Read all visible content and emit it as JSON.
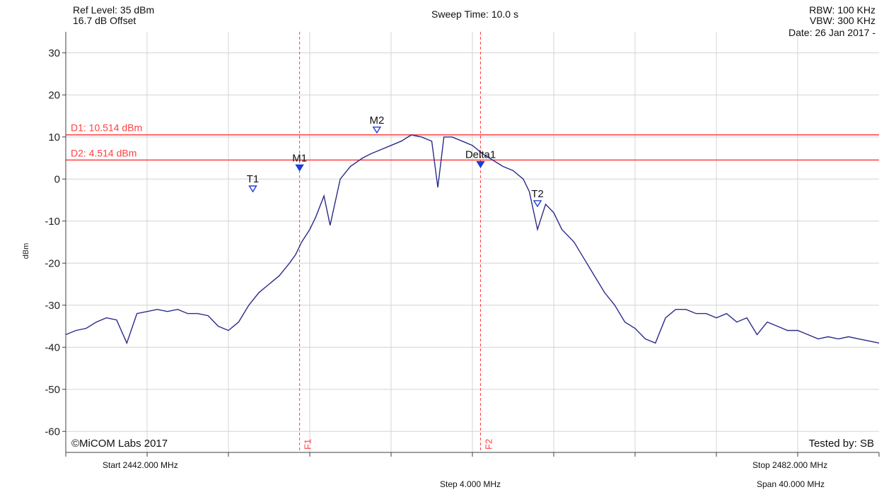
{
  "header": {
    "ref_level": "Ref Level: 35 dBm",
    "offset": "16.7 dB Offset",
    "sweep_time": "Sweep Time: 10.0 s",
    "rbw": "RBW: 100 KHz",
    "vbw": "VBW: 300 KHz",
    "date": "Date: 26 Jan 2017 -"
  },
  "footer": {
    "start": "Start 2442.000 MHz",
    "step": "Step 4.000 MHz",
    "stop": "Stop 2482.000 MHz",
    "span": "Span 40.000 MHz",
    "copyright": "©MiCOM Labs 2017",
    "tested_by": "Tested by: SB"
  },
  "colors": {
    "trace": "#2b2b8a",
    "marker": "#1a3fd6",
    "limit": "#ff4040",
    "grid": "#d4d4d4",
    "axis": "#404040"
  },
  "chart_data": {
    "type": "line",
    "ylabel": "dBm",
    "xlim": [
      2442.0,
      2482.0
    ],
    "ylim": [
      -65,
      35
    ],
    "x_grid_step_mhz": 4.0,
    "yticks": [
      30,
      20,
      10,
      0,
      -10,
      -20,
      -30,
      -40,
      -50,
      -60
    ],
    "series": [
      {
        "x": [
          2442.0,
          2442.5,
          2443.0,
          2443.5,
          2444.0,
          2444.5,
          2445.0,
          2445.5,
          2446.0,
          2446.5,
          2447.0,
          2447.5,
          2448.0,
          2448.5,
          2449.0,
          2449.5,
          2450.0,
          2450.5,
          2451.0,
          2451.5,
          2452.0,
          2452.5,
          2453.0,
          2453.3,
          2453.6,
          2454.0,
          2454.3,
          2454.7,
          2455.0,
          2455.5,
          2456.0,
          2456.3,
          2456.6,
          2457.0,
          2457.5,
          2458.0,
          2458.5,
          2459.0,
          2459.5,
          2460.0,
          2460.3,
          2460.6,
          2461.0,
          2461.5,
          2462.0,
          2462.5,
          2463.0,
          2463.5,
          2464.0,
          2464.5,
          2464.8,
          2465.2,
          2465.6,
          2466.0,
          2466.4,
          2467.0,
          2467.5,
          2468.0,
          2468.5,
          2469.0,
          2469.5,
          2470.0,
          2470.5,
          2471.0,
          2471.5,
          2472.0,
          2472.5,
          2473.0,
          2473.5,
          2474.0,
          2474.5,
          2475.0,
          2475.5,
          2476.0,
          2476.5,
          2477.0,
          2477.5,
          2478.0,
          2478.5,
          2479.0,
          2479.5,
          2480.0,
          2480.5,
          2481.0,
          2481.5,
          2482.0
        ],
        "values": [
          -37,
          -36,
          -35.5,
          -34,
          -33,
          -33.5,
          -39,
          -32,
          -31.5,
          -31,
          -31.5,
          -31,
          -32,
          -32,
          -32.5,
          -35,
          -36,
          -34,
          -30,
          -27,
          -25,
          -23,
          -20,
          -18,
          -15,
          -12,
          -9,
          -4,
          -11,
          0,
          3,
          4,
          5,
          6,
          7,
          8,
          9,
          10.5,
          10,
          9,
          -2,
          10,
          10,
          9,
          8,
          6,
          4.5,
          3,
          2,
          0,
          -3,
          -12,
          -6,
          -8,
          -12,
          -15,
          -19,
          -23,
          -27,
          -30,
          -34,
          -35.5,
          -38,
          -39,
          -33,
          -31,
          -31,
          -32,
          -32,
          -33,
          -32,
          -34,
          -33,
          -37,
          -34,
          -35,
          -36,
          -36,
          -37,
          -38,
          -37.5,
          -38,
          -37.5,
          -38,
          -38.5,
          -39
        ]
      }
    ],
    "lines": [
      {
        "label": "D1: 10.514 dBm",
        "y": 10.514
      },
      {
        "label": "D2: 4.514 dBm",
        "y": 4.514
      }
    ],
    "vlines": [
      {
        "label": "F1",
        "x": 2453.5
      },
      {
        "label": "F2",
        "x": 2462.4
      }
    ],
    "markers": [
      {
        "label": "T1",
        "x": 2451.2,
        "y": -2.5,
        "type": "hollow"
      },
      {
        "label": "M1",
        "x": 2453.5,
        "y": 2.5,
        "type": "filled"
      },
      {
        "label": "M2",
        "x": 2457.3,
        "y": 11.5,
        "type": "hollow"
      },
      {
        "label": "Delta1",
        "x": 2462.4,
        "y": 3.3,
        "type": "filled"
      },
      {
        "label": "T2",
        "x": 2465.2,
        "y": -6.0,
        "type": "hollow"
      }
    ]
  }
}
